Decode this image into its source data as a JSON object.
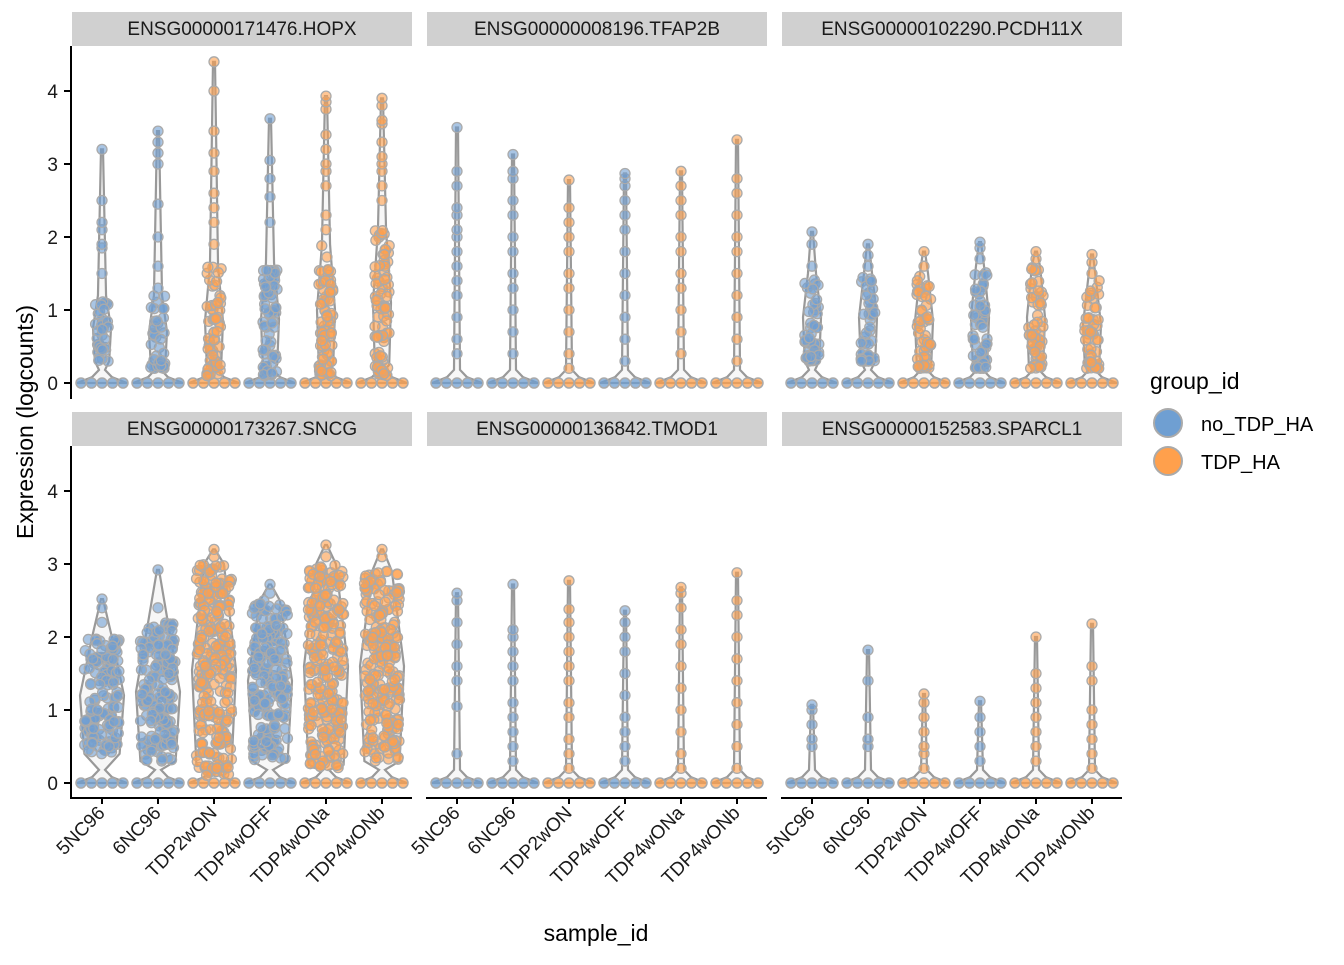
{
  "chart_data": {
    "type": "violin+jitter",
    "xlabel": "sample_id",
    "ylabel": "Expression (logcounts)",
    "ylim": [
      0,
      4.5
    ],
    "yticks": [
      "0",
      "1",
      "2",
      "3",
      "4"
    ],
    "categories": [
      "5NC96",
      "6NC96",
      "TDP2wON",
      "TDP4wOFF",
      "TDP4wONa",
      "TDP4wONb"
    ],
    "sample_group": [
      "no_TDP_HA",
      "no_TDP_HA",
      "TDP_HA",
      "no_TDP_HA",
      "TDP_HA",
      "TDP_HA"
    ],
    "legend": {
      "title": "group_id",
      "placement": "right",
      "entries": [
        {
          "name": "no_TDP_HA",
          "color": "#6f9fd2"
        },
        {
          "name": "TDP_HA",
          "color": "#ffa04c"
        }
      ]
    },
    "facets": [
      {
        "title": "ENSG00000171476.HOPX",
        "samples": [
          {
            "max": 3.2,
            "bulk": [
              0.3,
              1.2
            ],
            "points": [
              1.5,
              1.85,
              1.9,
              2.1,
              2.2,
              2.5,
              3.2
            ]
          },
          {
            "max": 3.45,
            "bulk": [
              0.2,
              1.2
            ],
            "points": [
              1.3,
              1.6,
              2.0,
              2.45,
              3.0,
              3.15,
              3.3,
              3.45
            ]
          },
          {
            "max": 4.4,
            "bulk": [
              0.1,
              1.6
            ],
            "points": [
              1.9,
              2.2,
              2.4,
              2.6,
              2.9,
              3.15,
              3.45,
              4.0,
              4.4
            ]
          },
          {
            "max": 3.62,
            "bulk": [
              0.1,
              1.65
            ],
            "points": [
              2.2,
              2.55,
              2.8,
              3.05,
              3.62
            ]
          },
          {
            "max": 3.93,
            "bulk": [
              0.1,
              1.9
            ],
            "points": [
              2.1,
              2.3,
              2.7,
              2.9,
              3.0,
              3.2,
              3.4,
              3.75,
              3.85,
              3.93
            ]
          },
          {
            "max": 3.9,
            "bulk": [
              0.1,
              2.1
            ],
            "points": [
              2.5,
              2.7,
              2.9,
              3.0,
              3.1,
              3.3,
              3.55,
              3.6,
              3.8,
              3.9
            ]
          }
        ]
      },
      {
        "title": "ENSG00000008196.TFAP2B",
        "samples": [
          {
            "max": 3.5,
            "bulk": null,
            "points": [
              0.4,
              0.6,
              0.9,
              1.2,
              1.4,
              1.6,
              1.8,
              2.0,
              2.1,
              2.3,
              2.4,
              2.7,
              2.9,
              3.5
            ]
          },
          {
            "max": 3.13,
            "bulk": null,
            "points": [
              0.4,
              0.7,
              1.0,
              1.3,
              1.5,
              1.8,
              2.0,
              2.3,
              2.5,
              2.8,
              2.9,
              3.13
            ]
          },
          {
            "max": 2.78,
            "bulk": null,
            "points": [
              0.2,
              0.4,
              0.7,
              1.0,
              1.3,
              1.5,
              1.8,
              2.0,
              2.2,
              2.4,
              2.78
            ]
          },
          {
            "max": 2.87,
            "bulk": null,
            "points": [
              0.3,
              0.6,
              0.9,
              1.2,
              1.5,
              1.8,
              2.1,
              2.3,
              2.5,
              2.7,
              2.8,
              2.87
            ]
          },
          {
            "max": 2.9,
            "bulk": null,
            "points": [
              0.4,
              0.7,
              1.0,
              1.3,
              1.5,
              1.8,
              2.0,
              2.3,
              2.5,
              2.7,
              2.9
            ]
          },
          {
            "max": 3.33,
            "bulk": null,
            "points": [
              0.3,
              0.6,
              0.9,
              1.2,
              1.5,
              1.8,
              2.0,
              2.3,
              2.6,
              2.8,
              3.33
            ]
          }
        ]
      },
      {
        "title": "ENSG00000102290.PCDH11X",
        "samples": [
          {
            "max": 2.07,
            "bulk": [
              0.3,
              1.5
            ],
            "points": [
              1.6,
              1.9,
              2.07
            ]
          },
          {
            "max": 1.9,
            "bulk": [
              0.3,
              1.5
            ],
            "points": [
              1.6,
              1.75,
              1.9
            ]
          },
          {
            "max": 1.8,
            "bulk": [
              0.2,
              1.5
            ],
            "points": [
              1.6,
              1.8
            ]
          },
          {
            "max": 1.93,
            "bulk": [
              0.2,
              1.6
            ],
            "points": [
              1.7,
              1.85,
              1.93
            ]
          },
          {
            "max": 1.8,
            "bulk": [
              0.2,
              1.6
            ],
            "points": [
              1.7,
              1.8
            ]
          },
          {
            "max": 1.76,
            "bulk": [
              0.2,
              1.4
            ],
            "points": [
              1.5,
              1.65,
              1.76
            ]
          }
        ]
      },
      {
        "title": "ENSG00000173267.SNCG",
        "samples": [
          {
            "max": 2.52,
            "bulk": [
              0.4,
              2.0
            ],
            "wide": true,
            "points": [
              2.2,
              2.4,
              2.52
            ]
          },
          {
            "max": 2.92,
            "bulk": [
              0.3,
              2.2
            ],
            "wide": true,
            "points": [
              2.4,
              2.92
            ]
          },
          {
            "max": 3.2,
            "bulk": [
              0.1,
              3.0
            ],
            "wide": true,
            "points": [
              3.1,
              3.2
            ]
          },
          {
            "max": 2.72,
            "bulk": [
              0.3,
              2.5
            ],
            "wide": true,
            "points": [
              2.6,
              2.72
            ]
          },
          {
            "max": 3.26,
            "bulk": [
              0.2,
              3.0
            ],
            "wide": true,
            "points": [
              3.1,
              3.26
            ]
          },
          {
            "max": 3.2,
            "bulk": [
              0.3,
              2.9
            ],
            "wide": true,
            "points": [
              3.1,
              3.2
            ]
          }
        ]
      },
      {
        "title": "ENSG00000136842.TMOD1",
        "samples": [
          {
            "max": 2.6,
            "bulk": null,
            "points": [
              0.4,
              1.05,
              1.4,
              1.6,
              1.9,
              2.2,
              2.5,
              2.6
            ]
          },
          {
            "max": 2.72,
            "bulk": null,
            "points": [
              0.3,
              0.5,
              0.7,
              0.9,
              1.1,
              1.4,
              1.6,
              1.8,
              2.0,
              2.1,
              2.72
            ]
          },
          {
            "max": 2.77,
            "bulk": null,
            "points": [
              0.2,
              0.4,
              0.6,
              0.9,
              1.1,
              1.4,
              1.6,
              1.8,
              2.0,
              2.2,
              2.38,
              2.77
            ]
          },
          {
            "max": 2.36,
            "bulk": null,
            "points": [
              0.3,
              0.5,
              0.7,
              0.9,
              1.2,
              1.5,
              1.8,
              2.0,
              2.2,
              2.36
            ]
          },
          {
            "max": 2.68,
            "bulk": null,
            "points": [
              0.2,
              0.4,
              0.7,
              1.0,
              1.3,
              1.6,
              1.9,
              2.1,
              2.4,
              2.6,
              2.68
            ]
          },
          {
            "max": 2.88,
            "bulk": null,
            "points": [
              0.2,
              0.5,
              0.8,
              1.1,
              1.4,
              1.7,
              2.0,
              2.3,
              2.5,
              2.88
            ]
          }
        ]
      },
      {
        "title": "ENSG00000152583.SPARCL1",
        "samples": [
          {
            "max": 1.07,
            "bulk": null,
            "points": [
              0.5,
              0.6,
              0.8,
              1.0,
              1.07
            ]
          },
          {
            "max": 1.82,
            "bulk": null,
            "points": [
              0.5,
              0.6,
              0.9,
              1.4,
              1.82
            ]
          },
          {
            "max": 1.22,
            "bulk": null,
            "points": [
              0.2,
              0.4,
              0.5,
              0.7,
              0.9,
              1.1,
              1.22
            ]
          },
          {
            "max": 1.12,
            "bulk": null,
            "points": [
              0.3,
              0.5,
              0.7,
              0.9,
              1.12
            ]
          },
          {
            "max": 2.0,
            "bulk": null,
            "points": [
              0.3,
              0.5,
              0.7,
              0.9,
              1.1,
              1.3,
              1.5,
              2.0
            ]
          },
          {
            "max": 2.18,
            "bulk": null,
            "points": [
              0.2,
              0.4,
              0.6,
              0.8,
              1.0,
              1.4,
              1.6,
              2.18
            ]
          }
        ]
      }
    ]
  }
}
